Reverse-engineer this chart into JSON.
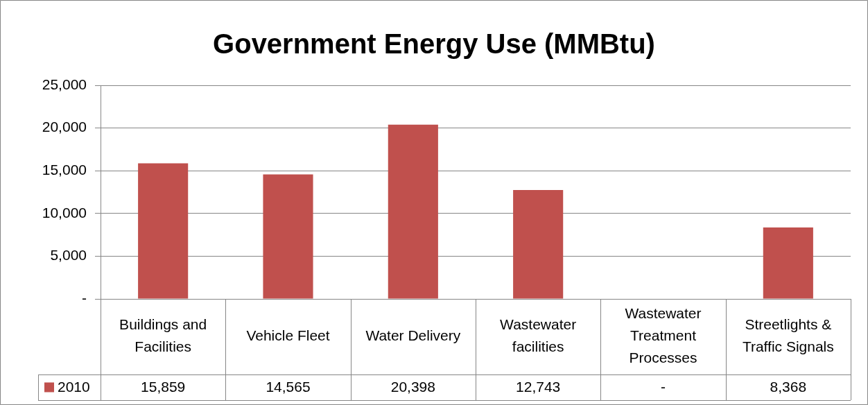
{
  "chart_data": {
    "type": "bar",
    "title": "Government Energy Use (MMBtu)",
    "categories": [
      "Buildings and Facilities",
      "Vehicle Fleet",
      "Water Delivery",
      "Wastewater facilities",
      "Wastewater Treatment Processes",
      "Streetlights & Traffic Signals"
    ],
    "series": [
      {
        "name": "2010",
        "color": "#c0504d",
        "values": [
          15859,
          14565,
          20398,
          12743,
          null,
          8368
        ],
        "value_labels": [
          "15,859",
          "14,565",
          "20,398",
          "12,743",
          "-",
          "8,368"
        ]
      }
    ],
    "ylim": [
      0,
      25000
    ],
    "yticks": [
      {
        "value": 0,
        "label": "-"
      },
      {
        "value": 5000,
        "label": "5,000"
      },
      {
        "value": 10000,
        "label": "10,000"
      },
      {
        "value": 15000,
        "label": "15,000"
      },
      {
        "value": 20000,
        "label": "20,000"
      },
      {
        "value": 25000,
        "label": "25,000"
      }
    ],
    "grid": "y",
    "legend": "bottom"
  }
}
